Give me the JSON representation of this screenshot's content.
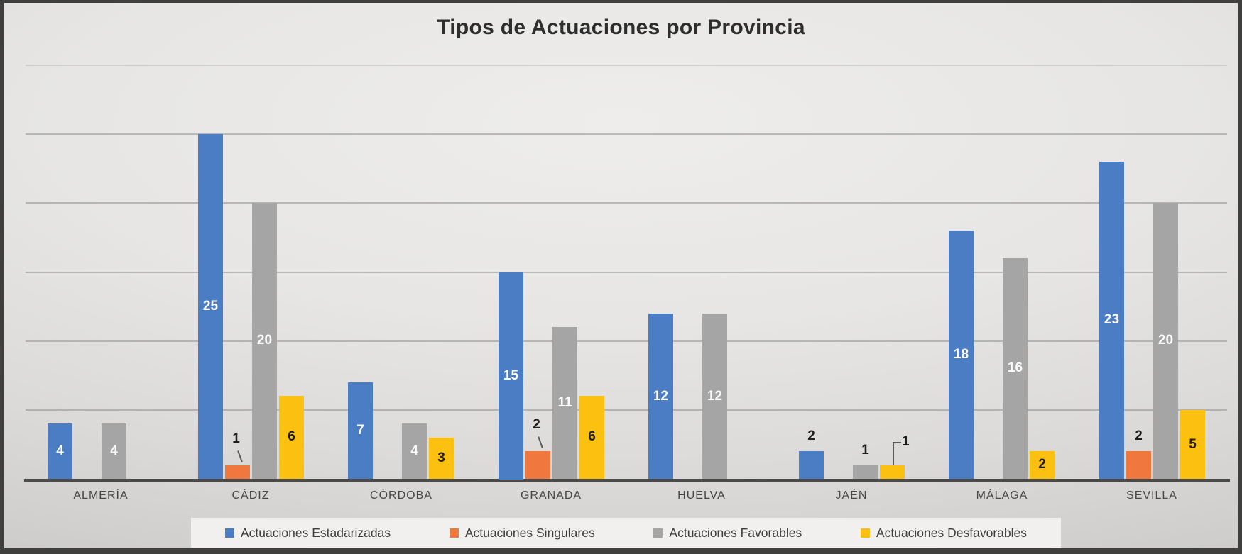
{
  "chart_data": {
    "type": "bar",
    "title": "Tipos de Actuaciones por Provincia",
    "xlabel": "",
    "ylabel": "",
    "ylim": [
      0,
      30
    ],
    "grid": true,
    "grid_step": 5,
    "y_tick_labels_visible": false,
    "legend_position": "bottom",
    "categories": [
      "ALMERÍA",
      "CÁDIZ",
      "CÓRDOBA",
      "GRANADA",
      "HUELVA",
      "JAÉN",
      "MÁLAGA",
      "SEVILLA"
    ],
    "series": [
      {
        "name": "Actuaciones Estadarizadas",
        "color": "#4a7dc3",
        "label_color_inside": "#ffffff",
        "label_color_outside": "#1e1e1e",
        "values": [
          4,
          25,
          7,
          15,
          12,
          2,
          18,
          23
        ],
        "label_pos": [
          "inside",
          "inside",
          "inside",
          "inside",
          "inside",
          "above",
          "inside",
          "inside"
        ]
      },
      {
        "name": "Actuaciones Singulares",
        "color": "#f0773e",
        "label_color_inside": "#1e1e1e",
        "label_color_outside": "#1e1e1e",
        "values": [
          0,
          1,
          0,
          2,
          0,
          0,
          0,
          2
        ],
        "label_pos": [
          "none",
          "slant",
          "none",
          "slant",
          "none",
          "none",
          "none",
          "above"
        ]
      },
      {
        "name": "Actuaciones Favorables",
        "color": "#a5a5a5",
        "label_color_inside": "#fafafa",
        "label_color_outside": "#1e1e1e",
        "values": [
          4,
          20,
          4,
          11,
          12,
          1,
          16,
          20
        ],
        "label_pos": [
          "inside",
          "inside",
          "inside",
          "inside",
          "inside",
          "above",
          "inside",
          "inside"
        ]
      },
      {
        "name": "Actuaciones Desfavorables",
        "color": "#fcc011",
        "label_color_inside": "#1e1e1e",
        "label_color_outside": "#1e1e1e",
        "values": [
          0,
          6,
          3,
          6,
          0,
          1,
          2,
          5
        ],
        "label_pos": [
          "none",
          "inside",
          "inside",
          "inside",
          "none",
          "elbow",
          "inside",
          "inside"
        ]
      }
    ],
    "colors": {
      "background_light": "#eeedeb",
      "background_dark": "#c9c8c6",
      "frame_border": "#3f3f3d",
      "gridline": "#8f8f8f",
      "axis_line": "#4a4a48",
      "legend_background": "#f1f0ee",
      "title_text": "#2e2e2e",
      "axis_label_text": "#474747"
    }
  }
}
